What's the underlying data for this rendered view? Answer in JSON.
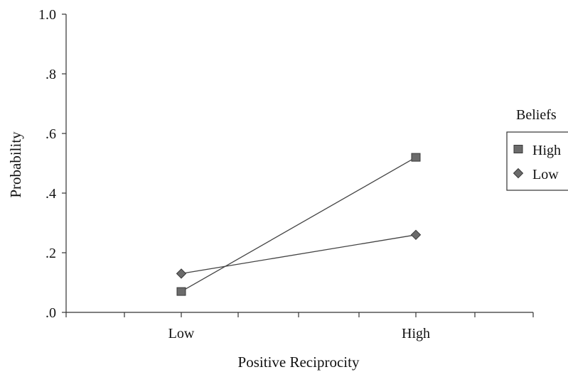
{
  "chart_data": {
    "type": "line",
    "xlabel": "Positive Reciprocity",
    "ylabel": "Probability",
    "categories": [
      "Low",
      "High"
    ],
    "ylim": [
      0,
      1.0
    ],
    "yticks": [
      {
        "value": 0.0,
        "label": ".0"
      },
      {
        "value": 0.2,
        "label": ".2"
      },
      {
        "value": 0.4,
        "label": ".4"
      },
      {
        "value": 0.6,
        "label": ".6"
      },
      {
        "value": 0.8,
        "label": ".8"
      },
      {
        "value": 1.0,
        "label": "1.0"
      }
    ],
    "legend_title": "Beliefs",
    "legend_position": "right",
    "grid": false,
    "series": [
      {
        "name": "High",
        "marker": "square",
        "color": "#6b6b6b",
        "values": [
          0.07,
          0.52
        ]
      },
      {
        "name": "Low",
        "marker": "diamond",
        "color": "#6b6b6b",
        "values": [
          0.13,
          0.26
        ]
      }
    ]
  }
}
